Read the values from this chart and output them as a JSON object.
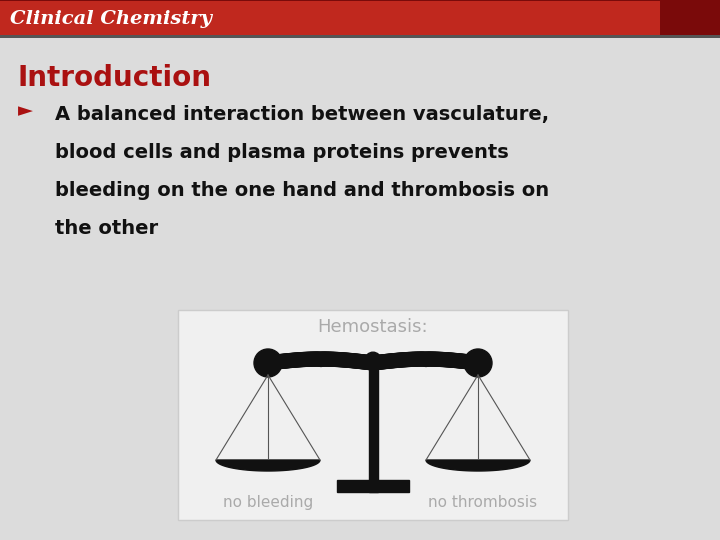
{
  "bg_color": "#dcdcdc",
  "header_bg_color": "#c0281e",
  "header_dark_stripe_color": "#7a0a0a",
  "header_text": "Clinical Chemistry",
  "header_text_color": "#ffffff",
  "title_text": "Introduction",
  "title_color": "#aa1111",
  "body_lines": [
    "A balanced interaction between vasculature,",
    "blood cells and plasma proteins prevents",
    "bleeding on the one hand and thrombosis on",
    "the other"
  ],
  "body_color": "#111111",
  "bullet_color": "#aa1111",
  "box_bg": "#f0f0f0",
  "box_edge": "#cccccc",
  "hemostasis_text": "Hemostasis:",
  "hemostasis_color": "#aaaaaa",
  "label_left": "no bleeding",
  "label_right": "no thrombosis",
  "label_color": "#aaaaaa",
  "scale_color": "#111111"
}
